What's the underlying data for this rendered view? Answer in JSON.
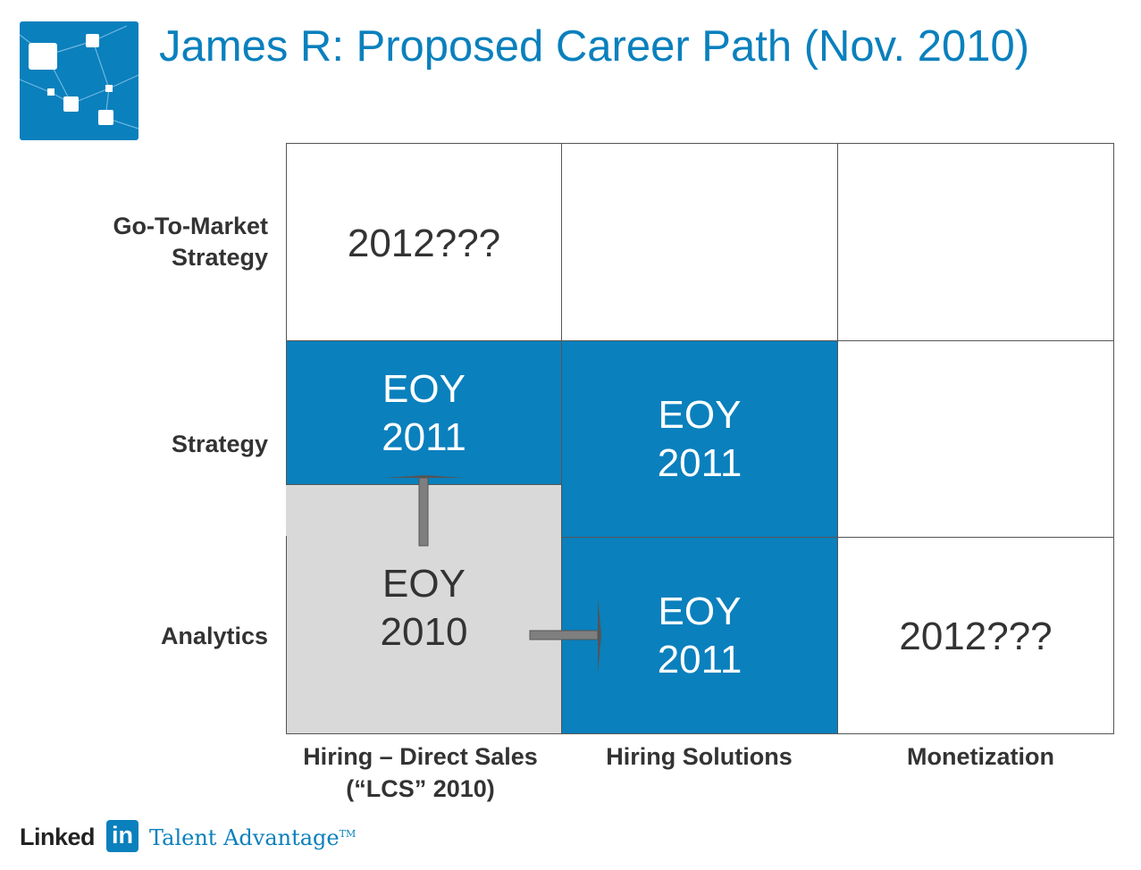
{
  "title": "James R: Proposed Career Path (Nov. 2010)",
  "row_labels": {
    "go_to_market_line1": "Go-To-Market",
    "go_to_market_line2": "Strategy",
    "strategy": "Strategy",
    "analytics": "Analytics"
  },
  "col_labels": {
    "hiring_direct_line1": "Hiring – Direct Sales",
    "hiring_direct_line2": "(“LCS” 2010)",
    "hiring_solutions": "Hiring Solutions",
    "monetization": "Monetization"
  },
  "cells": {
    "gtm_hiring_direct": "2012???",
    "strategy_hiring_direct": [
      "EOY",
      "2011"
    ],
    "strategy_hiring_solutions": [
      "EOY",
      "2011"
    ],
    "analytics_hiring_direct": [
      "EOY",
      "2010"
    ],
    "analytics_hiring_solutions": [
      "EOY",
      "2011"
    ],
    "analytics_monetization": "2012???"
  },
  "footer": {
    "linkedin_word": "Linked",
    "linkedin_in": "in",
    "product": "Talent Advantage",
    "trademark": "TM"
  },
  "colors": {
    "accent_blue": "#0a80bd",
    "grey_cell": "#d9d9d9",
    "text_dark": "#333333"
  },
  "icons": [
    "network-logo-icon",
    "arrow-up-icon",
    "arrow-right-icon"
  ]
}
